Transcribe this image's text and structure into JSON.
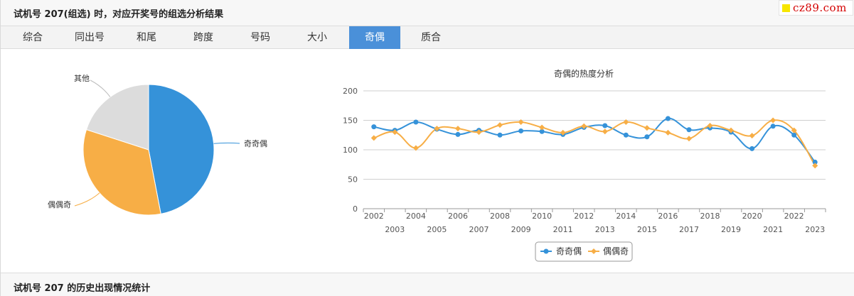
{
  "header": {
    "title": "试机号 207(组选) 时，对应开奖号的组选分析结果"
  },
  "logo": {
    "text": "cz89.com"
  },
  "tabs": [
    {
      "label": "综合"
    },
    {
      "label": "同出号"
    },
    {
      "label": "和尾"
    },
    {
      "label": "跨度"
    },
    {
      "label": "号码"
    },
    {
      "label": "大小"
    },
    {
      "label": "奇偶",
      "active": true
    },
    {
      "label": "质合"
    }
  ],
  "colors": {
    "series_a": "#3592d9",
    "series_b": "#f7ae46",
    "other": "#dcdcdc",
    "tab_active": "#4a90d9"
  },
  "chart_data": [
    {
      "type": "pie",
      "labels": [
        "奇奇偶",
        "偶偶奇",
        "其他"
      ],
      "values": [
        47,
        33,
        20
      ]
    },
    {
      "type": "line",
      "title": "奇偶的热度分析",
      "x": [
        "2002",
        "2003",
        "2004",
        "2005",
        "2006",
        "2007",
        "2008",
        "2009",
        "2010",
        "2011",
        "2012",
        "2013",
        "2014",
        "2015",
        "2016",
        "2017",
        "2018",
        "2019",
        "2020",
        "2021",
        "2022",
        "2023"
      ],
      "series": [
        {
          "name": "奇奇偶",
          "values": [
            139,
            133,
            147,
            135,
            126,
            133,
            125,
            132,
            131,
            126,
            138,
            141,
            125,
            122,
            153,
            134,
            137,
            130,
            102,
            140,
            125,
            79
          ]
        },
        {
          "name": "偶偶奇",
          "values": [
            120,
            130,
            103,
            136,
            136,
            130,
            142,
            147,
            138,
            129,
            140,
            131,
            147,
            137,
            129,
            119,
            141,
            133,
            124,
            150,
            133,
            73
          ]
        }
      ],
      "yticks": [
        0,
        50,
        100,
        150,
        200
      ],
      "ylim": [
        0,
        200
      ],
      "grid": true,
      "legend": "bottom-center"
    }
  ],
  "footer": {
    "title": "试机号 207 的历史出现情况统计"
  }
}
